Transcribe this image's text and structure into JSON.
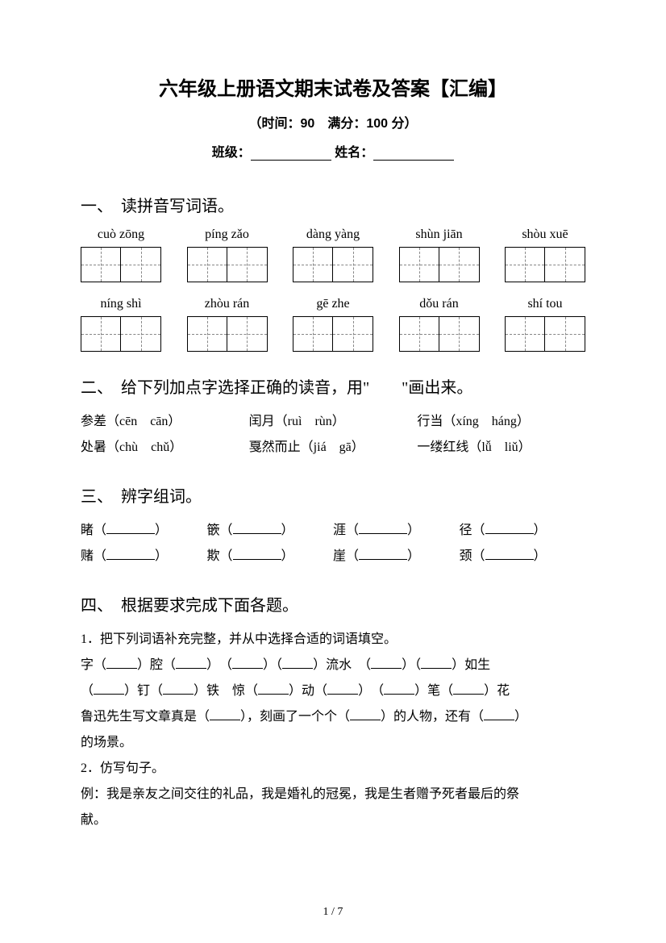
{
  "title": "六年级上册语文期末试卷及答案【汇编】",
  "subtitle": "（时间：90　满分：100 分）",
  "info": {
    "class_label": "班级：",
    "name_label": "姓名："
  },
  "q1": {
    "header": "一、　读拼音写词语。",
    "row1": [
      "cuò zōng",
      "píng zǎo",
      "dàng yàng",
      "shùn jiān",
      "shòu xuē"
    ],
    "row2": [
      "níng shì",
      "zhòu rán",
      "gē zhe",
      "dǒu rán",
      "shí tou"
    ]
  },
  "q2": {
    "header": "二、　给下列加点字选择正确的读音，用\"　　\"画出来。",
    "items": [
      {
        "text": "参差（cēn　cān）"
      },
      {
        "text": "闰月（ruì　rùn）"
      },
      {
        "text": "行当（xíng　háng）"
      },
      {
        "text": "处暑（chù　chǔ）"
      },
      {
        "text": "戛然而止（jiá　gā）"
      },
      {
        "text": "一缕红线（lǚ　liǔ）"
      }
    ]
  },
  "q3": {
    "header": "三、　辨字组词。",
    "row1": [
      "睹（",
      "篏（",
      "涯（",
      "径（"
    ],
    "row2": [
      "赌（",
      "欺（",
      "崖（",
      "颈（"
    ]
  },
  "q4": {
    "header": "四、　根据要求完成下面各题。",
    "line1": "1．把下列词语补充完整，并从中选择合适的词语填空。",
    "line2a": "字（",
    "line2b": "）腔（",
    "line2c": "）　（",
    "line2d": "）（",
    "line2e": "）流水　（",
    "line2f": "）（",
    "line2g": "）如生",
    "line3a": "（",
    "line3b": "）钉（",
    "line3c": "）铁　惊（",
    "line3d": "）动（",
    "line3e": "）　（",
    "line3f": "）笔（",
    "line3g": "）花",
    "line4a": "鲁迅先生写文章真是（",
    "line4b": "），刻画了一个个（",
    "line4c": "）的人物，还有（",
    "line4d": "）",
    "line5": "的场景。",
    "line6": "2．仿写句子。",
    "line7": "例：我是亲友之间交往的礼品，我是婚礼的冠冕，我是生者赠予死者最后的祭",
    "line8": "献。"
  },
  "page": "1 / 7"
}
